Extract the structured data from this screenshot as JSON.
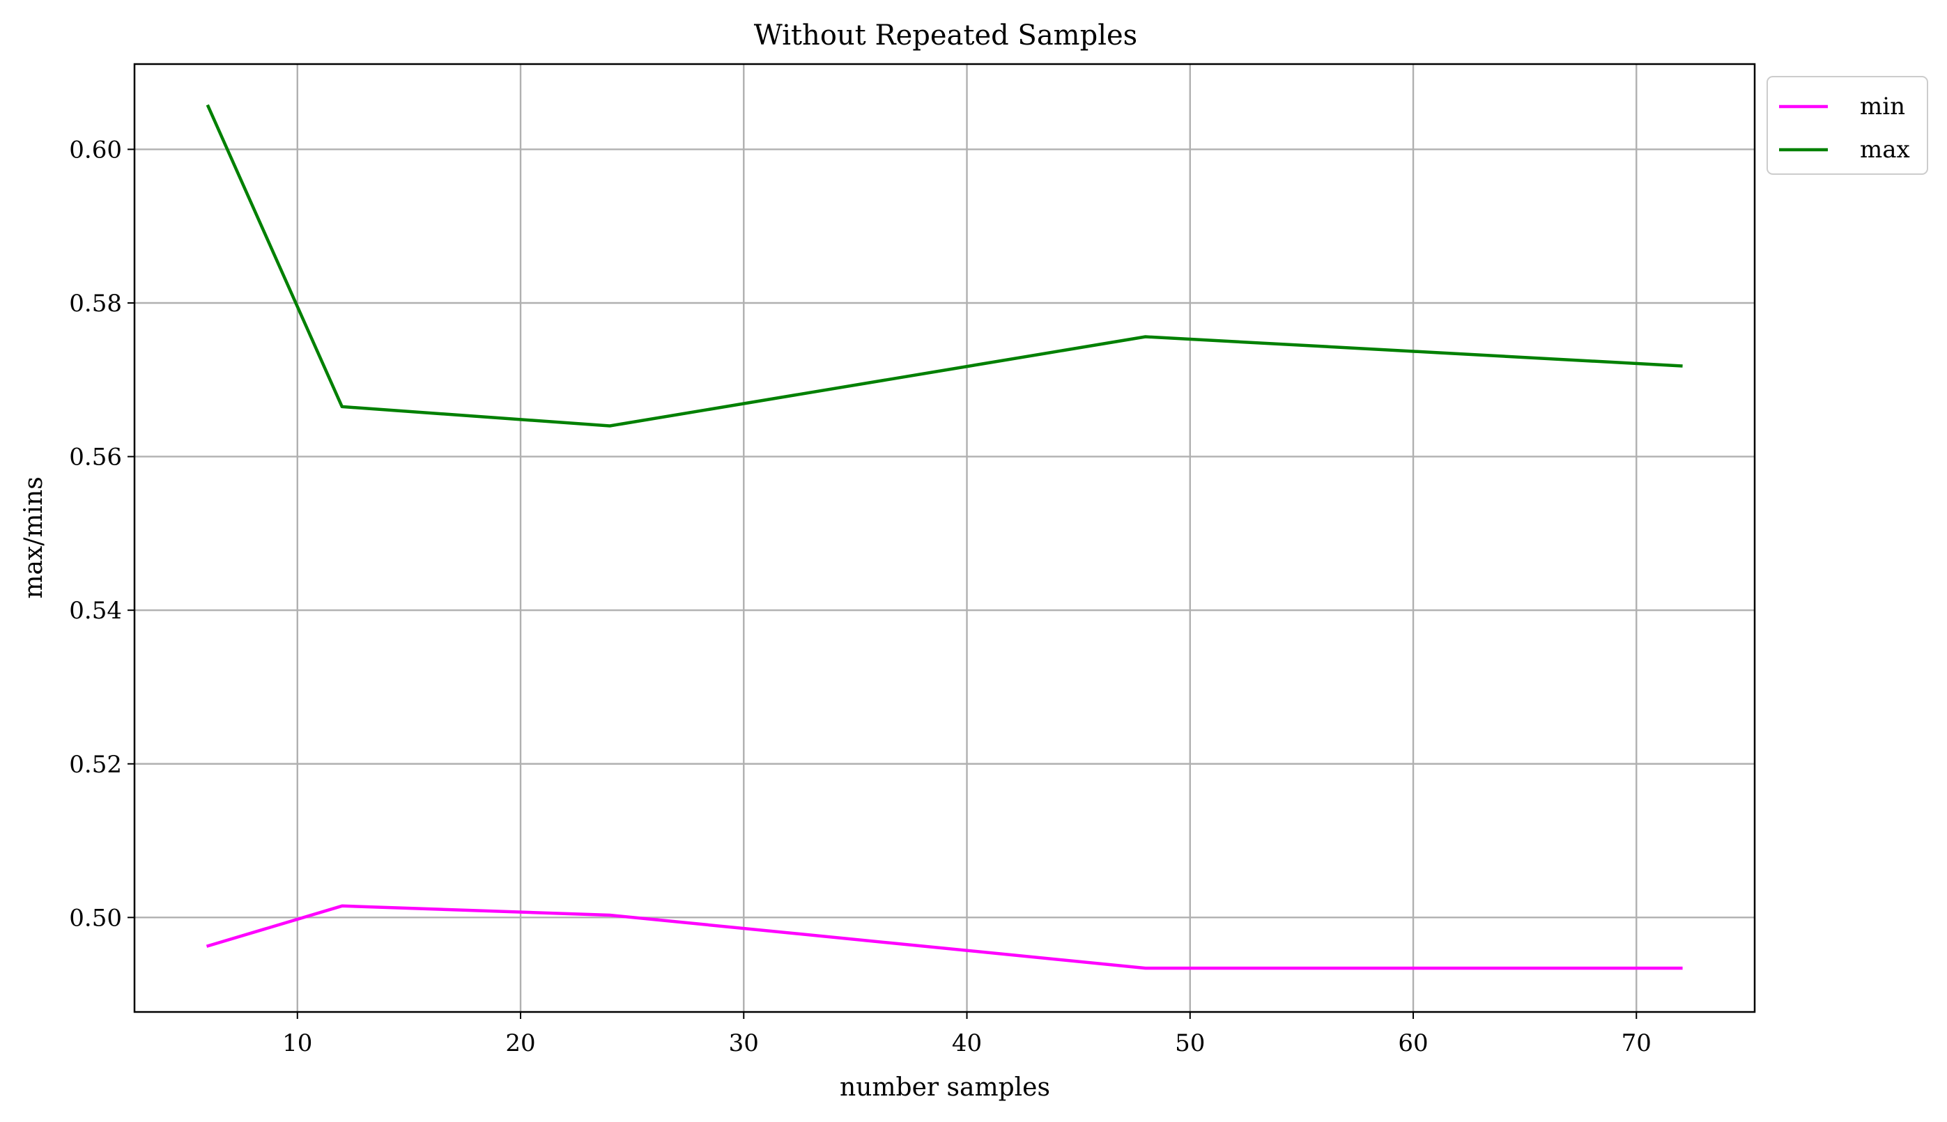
{
  "chart_data": {
    "type": "line",
    "title": "Without Repeated Samples",
    "xlabel": "number samples",
    "ylabel": "max/mins",
    "x": [
      6,
      12,
      24,
      48,
      72
    ],
    "xlim": [
      2.7,
      75.3
    ],
    "ylim": [
      0.4877,
      0.6111
    ],
    "xticks": [
      10,
      20,
      30,
      40,
      50,
      60,
      70
    ],
    "xtick_labels": [
      "10",
      "20",
      "30",
      "40",
      "50",
      "60",
      "70"
    ],
    "yticks": [
      0.5,
      0.52,
      0.54,
      0.56,
      0.58,
      0.6
    ],
    "ytick_labels": [
      "0.50",
      "0.52",
      "0.54",
      "0.56",
      "0.58",
      "0.60"
    ],
    "grid": true,
    "legend_position": "outside top-right",
    "series": [
      {
        "name": "min",
        "color": "#ff00ff",
        "values": [
          0.4963,
          0.5015,
          0.5003,
          0.4934,
          0.4934
        ]
      },
      {
        "name": "max",
        "color": "#008000",
        "values": [
          0.6056,
          0.5665,
          0.564,
          0.5756,
          0.5718
        ]
      }
    ]
  }
}
